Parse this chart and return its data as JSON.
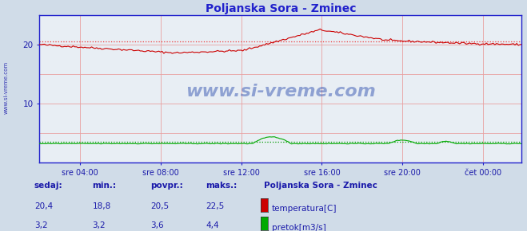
{
  "title": "Poljanska Sora - Zminec",
  "bg_color": "#d0dce8",
  "plot_bg_color": "#e8eef4",
  "grid_color": "#e8a0a0",
  "axis_color": "#2020cc",
  "title_color": "#2222cc",
  "label_color": "#1a1aaa",
  "ylim": [
    0,
    25
  ],
  "xlim": [
    0,
    287
  ],
  "xtick_positions": [
    24,
    72,
    120,
    168,
    216,
    264
  ],
  "xtick_labels": [
    "sre 04:00",
    "sre 08:00",
    "sre 12:00",
    "sre 16:00",
    "sre 20:00",
    "čet 00:00"
  ],
  "temp_avg": 20.5,
  "flow_avg": 3.6,
  "temp_color": "#cc0000",
  "flow_color": "#00aa00",
  "avg_temp_color": "#ee3333",
  "avg_flow_color": "#009900",
  "watermark": "www.si-vreme.com",
  "watermark_color": "#2244aa",
  "stats_labels": [
    "sedaj:",
    "min.:",
    "povpr.:",
    "maks.:"
  ],
  "stats_temp": [
    "20,4",
    "18,8",
    "20,5",
    "22,5"
  ],
  "stats_flow": [
    "3,2",
    "3,2",
    "3,6",
    "4,4"
  ],
  "legend_title": "Poljanska Sora - Zminec",
  "legend_temp": "temperatura[C]",
  "legend_flow": "pretok[m3/s]",
  "side_label": "www.si-vreme.com"
}
